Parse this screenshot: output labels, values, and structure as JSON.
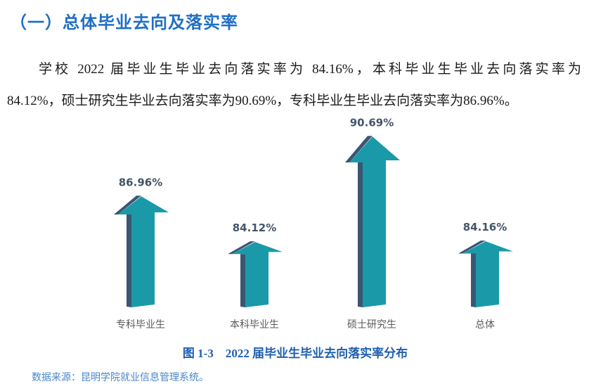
{
  "section": {
    "title": "（一）总体毕业去向及落实率"
  },
  "body": {
    "paragraph_lines": [
      "学校 2022 届毕业生毕业去向落实率为 84.16%，本科毕业生毕业去向落实率为",
      "84.12%，硕士研究生毕业去向落实率为90.69%，专科毕业生毕业去向落实率为86.96%。"
    ]
  },
  "chart_data": {
    "type": "bar",
    "style": "3d-arrow",
    "title": "图 1-3    2022 届毕业生毕业去向落实率分布",
    "categories": [
      "专科毕业生",
      "本科毕业生",
      "硕士研究生",
      "总体"
    ],
    "values": [
      86.96,
      84.12,
      90.69,
      84.16
    ],
    "value_labels": [
      "86.96%",
      "84.12%",
      "90.69%",
      "84.16%"
    ],
    "xlabel": "",
    "ylabel": "",
    "ylim": [
      80,
      92
    ],
    "grid": false,
    "legend": "none",
    "colors": {
      "front": "#1a9aa8",
      "side": "#3b5672",
      "label": "#44546a"
    }
  },
  "caption": "图 1-3    2022 届毕业生毕业去向落实率分布",
  "source": "数据来源：昆明学院就业信息管理系统。"
}
